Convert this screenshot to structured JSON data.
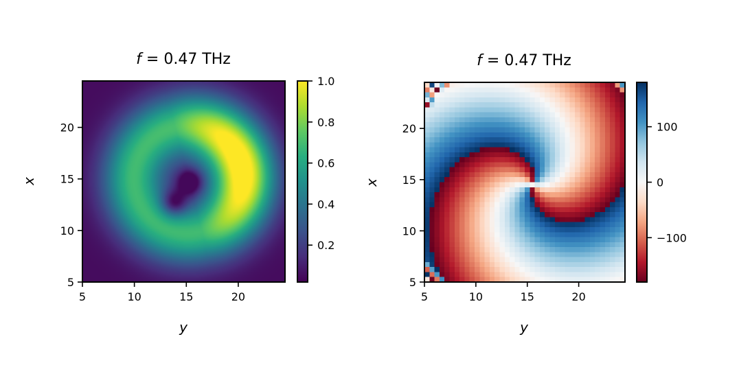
{
  "chart_data": [
    {
      "type": "heatmap",
      "title": "f = 0.47 THz",
      "title_var": "f",
      "title_rest": " = 0.47 THz",
      "xlabel": "y",
      "ylabel": "x",
      "xlim": [
        5,
        24.5
      ],
      "ylim": [
        5,
        24.5
      ],
      "xticks": [
        5,
        10,
        15,
        20
      ],
      "yticks": [
        5,
        10,
        15,
        20
      ],
      "colormap": "viridis",
      "colorbar": {
        "range": [
          0.02,
          1.0
        ],
        "ticks": [
          0.2,
          0.4,
          0.6,
          0.8,
          1.0
        ],
        "tick_labels": [
          "0.2",
          "0.4",
          "0.6",
          "0.8",
          "1.0"
        ]
      },
      "pattern": "amplitude ring with two dark cores near (x=13, y=14) and (x=15, y=15.5); brightest arc near (x=15–19, y=18–21)"
    },
    {
      "type": "heatmap",
      "title": "f = 0.47 THz",
      "title_var": "f",
      "title_rest": " = 0.47 THz",
      "xlabel": "y",
      "ylabel": "x",
      "xlim": [
        5,
        24.5
      ],
      "ylim": [
        5,
        24.5
      ],
      "xticks": [
        5,
        10,
        15,
        20
      ],
      "yticks": [
        5,
        10,
        15,
        20
      ],
      "colormap": "RdBu",
      "colorbar": {
        "range": [
          -180,
          180
        ],
        "ticks": [
          -100,
          0,
          100
        ],
        "tick_labels": [
          "−100",
          "0",
          "100"
        ]
      },
      "pattern": "phase map (degrees) with double-armed spiral around center (x=14.5, y=15.5)"
    }
  ]
}
